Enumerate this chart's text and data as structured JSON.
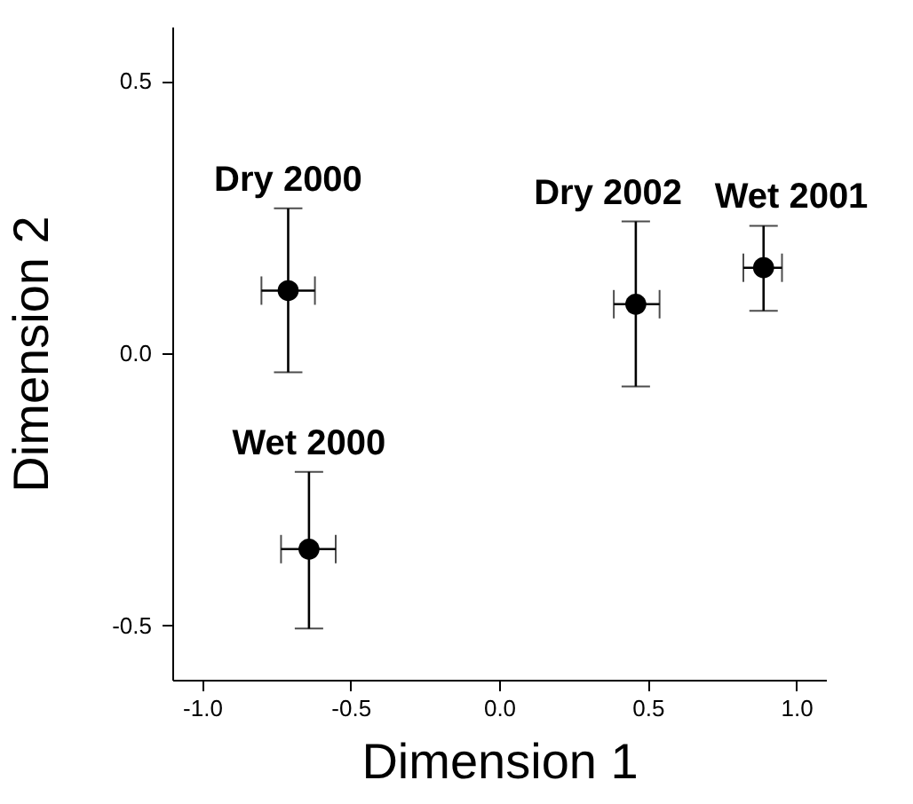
{
  "chart_data": {
    "type": "scatter",
    "xlabel": "Dimension 1",
    "ylabel": "Dimension 2",
    "series": [
      {
        "name": "Dry 2000",
        "color": "#000000",
        "x": [
          -0.71
        ],
        "values": [
          0.115
        ],
        "errors": [
          [
            -0.035,
            0.266
          ]
        ],
        "xerrors": [
          [
            -0.8,
            -0.62
          ]
        ]
      },
      {
        "name": "Wet 2000",
        "color": "#000000",
        "x": [
          -0.64
        ],
        "values": [
          -0.36
        ],
        "errors": [
          [
            -0.506,
            -0.218
          ]
        ],
        "xerrors": [
          [
            -0.734,
            -0.55
          ]
        ]
      },
      {
        "name": "Dry 2002",
        "color": "#000000",
        "x": [
          0.46
        ],
        "values": [
          0.09
        ],
        "errors": [
          [
            -0.061,
            0.242
          ]
        ],
        "xerrors": [
          [
            0.386,
            0.54
          ]
        ]
      },
      {
        "name": "Wet 2001",
        "color": "#000000",
        "x": [
          0.89
        ],
        "values": [
          0.157
        ],
        "errors": [
          [
            0.078,
            0.234
          ]
        ],
        "xerrors": [
          [
            0.822,
            0.952
          ]
        ]
      }
    ],
    "xlim": [
      -1.1,
      1.1
    ],
    "ylim": [
      -0.6,
      0.6
    ],
    "xticks": [
      {
        "value": -1,
        "label": "-1.0"
      },
      {
        "value": -0.5,
        "label": "-0.5"
      },
      {
        "value": 0,
        "label": "0.0"
      },
      {
        "value": 0.5,
        "label": "0.5"
      },
      {
        "value": 1,
        "label": "1.0"
      }
    ],
    "yticks": [
      {
        "value": -0.5,
        "label": "-0.5"
      },
      {
        "value": 0,
        "label": "0.0"
      },
      {
        "value": 0.5,
        "label": "0.5"
      }
    ],
    "grid": false,
    "marker": "circle"
  }
}
